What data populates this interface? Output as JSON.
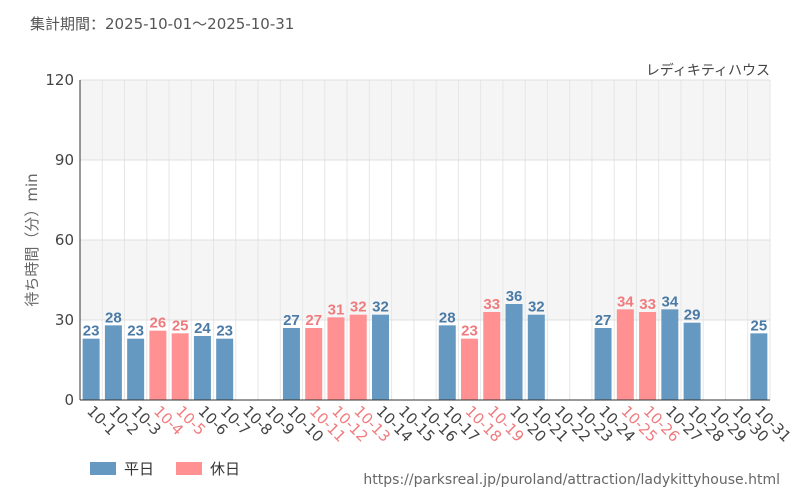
{
  "period_label": "集計期間：2025-10-01～2025-10-31",
  "source_url": "https://parksreal.jp/puroland/attraction/ladykittyhouse.html",
  "colors": {
    "weekday": "#6699c2",
    "holiday": "#ff9193",
    "weekday_label": "#4a7aa6",
    "holiday_label": "#f07b7e"
  },
  "chart_data": {
    "type": "bar",
    "title": "レディキティハウス",
    "xlabel": "",
    "ylabel": "待ち時間（分）min",
    "ylim": [
      0,
      120
    ],
    "yticks": [
      "0",
      "30",
      "60",
      "90",
      "120"
    ],
    "grid": true,
    "categories": [
      "10-1",
      "10-2",
      "10-3",
      "10-4",
      "10-5",
      "10-6",
      "10-7",
      "10-8",
      "10-9",
      "10-10",
      "10-11",
      "10-12",
      "10-13",
      "10-14",
      "10-15",
      "10-16",
      "10-17",
      "10-18",
      "10-19",
      "10-20",
      "10-21",
      "10-22",
      "10-23",
      "10-24",
      "10-25",
      "10-26",
      "10-27",
      "10-28",
      "10-29",
      "10-30",
      "10-31"
    ],
    "values": [
      23,
      28,
      23,
      26,
      25,
      24,
      23,
      null,
      null,
      27,
      27,
      31,
      32,
      32,
      null,
      null,
      28,
      23,
      33,
      36,
      32,
      null,
      null,
      27,
      34,
      33,
      34,
      29,
      null,
      null,
      25
    ],
    "day_type": [
      "weekday",
      "weekday",
      "weekday",
      "holiday",
      "holiday",
      "weekday",
      "weekday",
      "weekday",
      "weekday",
      "weekday",
      "holiday",
      "holiday",
      "holiday",
      "weekday",
      "weekday",
      "weekday",
      "weekday",
      "holiday",
      "holiday",
      "weekday",
      "weekday",
      "weekday",
      "weekday",
      "weekday",
      "holiday",
      "holiday",
      "weekday",
      "weekday",
      "weekday",
      "weekday",
      "weekday"
    ],
    "legend": [
      {
        "key": "weekday",
        "label": "平日"
      },
      {
        "key": "holiday",
        "label": "休日"
      }
    ],
    "legend_position": "bottom-left"
  }
}
